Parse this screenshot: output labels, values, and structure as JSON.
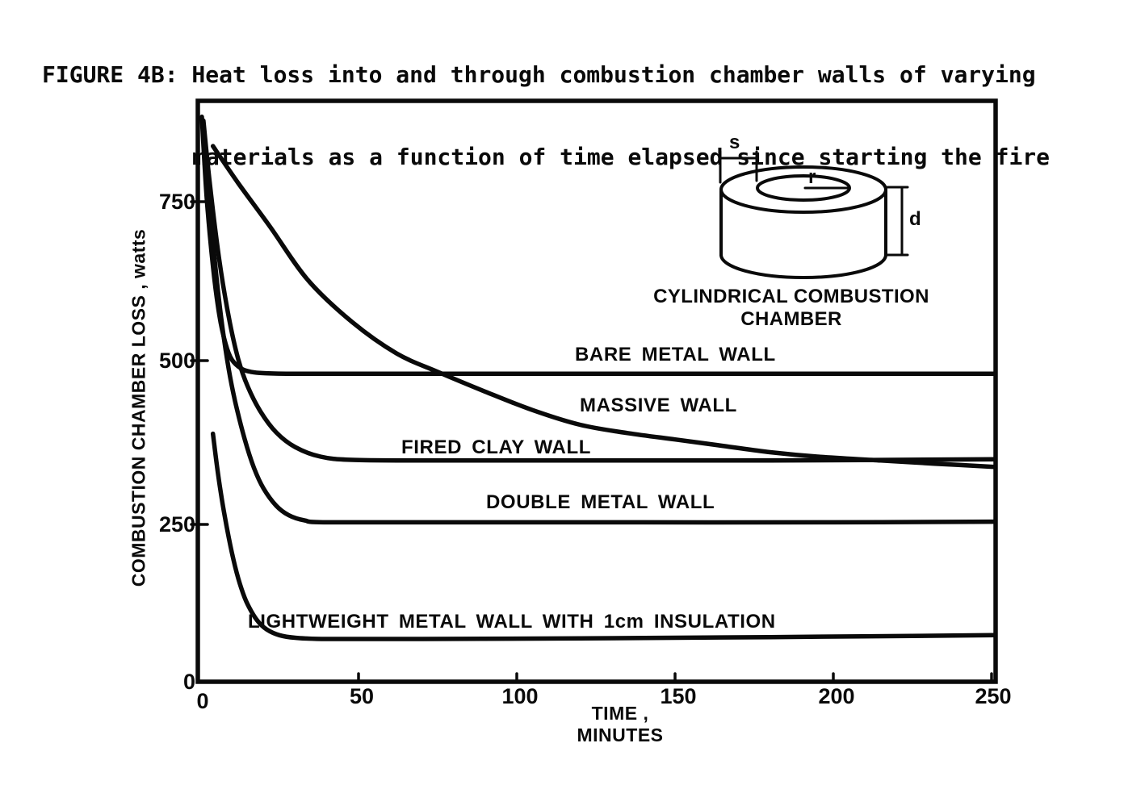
{
  "title": {
    "line1": "FIGURE 4B: Heat loss into and through combustion chamber walls of varying",
    "line2": "materials as a function of time elapsed since starting the fire"
  },
  "axes": {
    "y_label": "COMBUSTION CHAMBER LOSS , watts",
    "x_label": "TIME , MINUTES",
    "y_ticks": [
      "0",
      "250",
      "500",
      "750"
    ],
    "x_ticks": [
      "0",
      "50",
      "100",
      "150",
      "200",
      "250"
    ]
  },
  "inset": {
    "caption": "CYLINDRICAL COMBUSTION CHAMBER",
    "dim_s": "s",
    "dim_r": "r",
    "dim_d": "d"
  },
  "colors": {
    "ink": "#0a0a0a",
    "paper": "#ffffff"
  },
  "chart_data": {
    "type": "line",
    "title": "FIGURE 4B: Heat loss into and through combustion chamber walls of varying materials as a function of time elapsed since starting the fire",
    "xlabel": "TIME , MINUTES",
    "ylabel": "COMBUSTION CHAMBER LOSS , watts",
    "xlim": [
      0,
      251
    ],
    "ylim": [
      0,
      911
    ],
    "x_ticks": [
      0,
      50,
      100,
      150,
      200,
      250
    ],
    "y_ticks": [
      0,
      250,
      500,
      750
    ],
    "grid": false,
    "legend": "inline-labels-on-curves",
    "series": [
      {
        "name": "bare_metal_wall",
        "label": "BARE METAL WALL",
        "steady_state_watts": 483,
        "points": [
          [
            0.5,
            886
          ],
          [
            2,
            762
          ],
          [
            4,
            652
          ],
          [
            6,
            576
          ],
          [
            8,
            530
          ],
          [
            10,
            505
          ],
          [
            13,
            491
          ],
          [
            16,
            486
          ],
          [
            20,
            484
          ],
          [
            30,
            483
          ],
          [
            60,
            483
          ],
          [
            120,
            483
          ],
          [
            180,
            483
          ],
          [
            251,
            483
          ]
        ]
      },
      {
        "name": "massive_wall",
        "label": "MASSIVE WALL",
        "steady_state_watts": 337,
        "points": [
          [
            4,
            840
          ],
          [
            12,
            782
          ],
          [
            22,
            714
          ],
          [
            34,
            630
          ],
          [
            48,
            564
          ],
          [
            62,
            515
          ],
          [
            75,
            486
          ],
          [
            90,
            455
          ],
          [
            105,
            426
          ],
          [
            120,
            403
          ],
          [
            135,
            390
          ],
          [
            150,
            380
          ],
          [
            165,
            370
          ],
          [
            180,
            360
          ],
          [
            195,
            353
          ],
          [
            215,
            347
          ],
          [
            232,
            342
          ],
          [
            251,
            337
          ]
        ]
      },
      {
        "name": "fired_clay_wall",
        "label": "FIRED CLAY WALL",
        "steady_state_watts": 347,
        "points": [
          [
            1,
            880
          ],
          [
            3,
            782
          ],
          [
            6,
            662
          ],
          [
            9,
            572
          ],
          [
            12,
            506
          ],
          [
            15,
            463
          ],
          [
            19,
            424
          ],
          [
            24,
            391
          ],
          [
            30,
            368
          ],
          [
            38,
            353
          ],
          [
            48,
            348
          ],
          [
            70,
            347
          ],
          [
            120,
            347
          ],
          [
            180,
            347
          ],
          [
            251,
            349
          ]
        ]
      },
      {
        "name": "double_metal_wall",
        "label": "DOUBLE METAL WALL",
        "steady_state_watts": 250,
        "points": [
          [
            1,
            875
          ],
          [
            3,
            745
          ],
          [
            5,
            640
          ],
          [
            7,
            556
          ],
          [
            9,
            490
          ],
          [
            11,
            440
          ],
          [
            14,
            381
          ],
          [
            17,
            335
          ],
          [
            20,
            303
          ],
          [
            24,
            276
          ],
          [
            28,
            261
          ],
          [
            33,
            253
          ],
          [
            40,
            250
          ],
          [
            80,
            250
          ],
          [
            140,
            250
          ],
          [
            200,
            250
          ],
          [
            251,
            251
          ]
        ]
      },
      {
        "name": "lightweight_metal_wall_1cm_insulation",
        "label": "LIGHTWEIGHT METAL WALL WITH 1cm INSULATION",
        "steady_state_watts": 67,
        "points": [
          [
            4,
            389
          ],
          [
            5.5,
            330
          ],
          [
            7,
            281
          ],
          [
            9,
            226
          ],
          [
            11,
            181
          ],
          [
            13,
            146
          ],
          [
            15,
            121
          ],
          [
            18,
            96
          ],
          [
            21,
            82
          ],
          [
            25,
            73
          ],
          [
            30,
            69
          ],
          [
            40,
            67
          ],
          [
            70,
            67
          ],
          [
            120,
            68
          ],
          [
            180,
            70
          ],
          [
            251,
            73
          ]
        ]
      }
    ]
  }
}
